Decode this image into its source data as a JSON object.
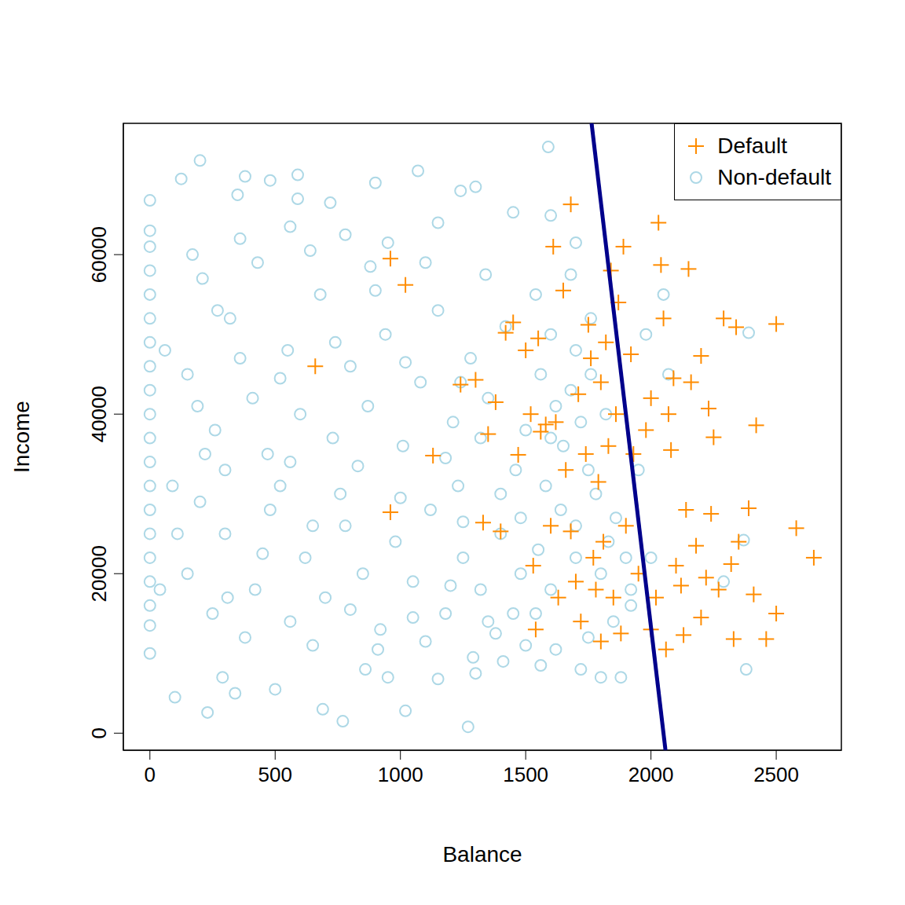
{
  "chart_data": {
    "type": "scatter",
    "x_label": "Balance",
    "y_label": "Income",
    "xlim": [
      -106,
      2760
    ],
    "ylim": [
      -2140,
      76460
    ],
    "xticks": [
      0,
      500,
      1000,
      1500,
      2000,
      2500
    ],
    "yticks": [
      0,
      20000,
      40000,
      60000
    ],
    "legend": "top-right",
    "series": [
      {
        "name": "Non-default",
        "color": "#add8e6",
        "marker": "circle",
        "values": [
          [
            0,
            10000
          ],
          [
            0,
            13500
          ],
          [
            0,
            16000
          ],
          [
            0,
            19000
          ],
          [
            0,
            22000
          ],
          [
            0,
            25000
          ],
          [
            0,
            28000
          ],
          [
            0,
            31000
          ],
          [
            0,
            34000
          ],
          [
            0,
            37000
          ],
          [
            0,
            40000
          ],
          [
            0,
            43000
          ],
          [
            0,
            46000
          ],
          [
            0,
            49000
          ],
          [
            0,
            52000
          ],
          [
            0,
            55000
          ],
          [
            0,
            58000
          ],
          [
            0,
            61000
          ],
          [
            0,
            63000
          ],
          [
            0,
            66800
          ],
          [
            100,
            4500
          ],
          [
            230,
            2600
          ],
          [
            200,
            71800
          ],
          [
            125,
            69500
          ],
          [
            380,
            69800
          ],
          [
            590,
            70000
          ],
          [
            480,
            69300
          ],
          [
            770,
            1500
          ],
          [
            1270,
            800
          ],
          [
            1020,
            2800
          ],
          [
            690,
            3000
          ],
          [
            1590,
            73500
          ],
          [
            1070,
            70500
          ],
          [
            900,
            69000
          ],
          [
            1240,
            68000
          ],
          [
            590,
            67000
          ],
          [
            350,
            67500
          ],
          [
            720,
            66500
          ],
          [
            1300,
            68500
          ],
          [
            1450,
            65300
          ],
          [
            1600,
            64900
          ],
          [
            1700,
            61500
          ],
          [
            2390,
            50200
          ],
          [
            2380,
            8000
          ],
          [
            2290,
            19000
          ],
          [
            2370,
            24200
          ],
          [
            2050,
            55000
          ],
          [
            1980,
            50000
          ],
          [
            2070,
            45000
          ],
          [
            1950,
            33000
          ],
          [
            2000,
            22000
          ],
          [
            1920,
            16000
          ],
          [
            1880,
            7000
          ],
          [
            1800,
            7000
          ],
          [
            1720,
            8000
          ],
          [
            1560,
            8500
          ],
          [
            1410,
            9000
          ],
          [
            1300,
            7500
          ],
          [
            1150,
            6800
          ],
          [
            950,
            7000
          ],
          [
            860,
            8000
          ],
          [
            500,
            5500
          ],
          [
            340,
            5000
          ],
          [
            290,
            7000
          ],
          [
            1290,
            9500
          ],
          [
            1380,
            12500
          ],
          [
            1500,
            11000
          ],
          [
            1620,
            10500
          ],
          [
            1750,
            12000
          ],
          [
            1850,
            14000
          ],
          [
            1700,
            48000
          ],
          [
            1760,
            45000
          ],
          [
            1820,
            40000
          ],
          [
            1650,
            36000
          ],
          [
            1780,
            30000
          ],
          [
            1860,
            27000
          ],
          [
            1700,
            22000
          ],
          [
            1800,
            20000
          ],
          [
            1900,
            22000
          ],
          [
            1600,
            18000
          ],
          [
            1450,
            15000
          ],
          [
            150,
            20000
          ],
          [
            250,
            15000
          ],
          [
            300,
            25000
          ],
          [
            420,
            18000
          ],
          [
            480,
            28000
          ],
          [
            560,
            14000
          ],
          [
            620,
            22000
          ],
          [
            700,
            17000
          ],
          [
            780,
            26000
          ],
          [
            850,
            20000
          ],
          [
            920,
            13000
          ],
          [
            980,
            24000
          ],
          [
            1050,
            19000
          ],
          [
            1120,
            28000
          ],
          [
            1180,
            15000
          ],
          [
            1250,
            22000
          ],
          [
            1320,
            18000
          ],
          [
            1400,
            25000
          ],
          [
            1480,
            20000
          ],
          [
            1550,
            23000
          ],
          [
            380,
            12000
          ],
          [
            650,
            11000
          ],
          [
            910,
            10500
          ],
          [
            1100,
            11500
          ],
          [
            200,
            29000
          ],
          [
            520,
            31000
          ],
          [
            760,
            30000
          ],
          [
            1000,
            29500
          ],
          [
            1230,
            31000
          ],
          [
            1400,
            30000
          ],
          [
            150,
            45000
          ],
          [
            260,
            38000
          ],
          [
            320,
            52000
          ],
          [
            410,
            42000
          ],
          [
            470,
            35000
          ],
          [
            550,
            48000
          ],
          [
            600,
            40000
          ],
          [
            680,
            55000
          ],
          [
            730,
            37000
          ],
          [
            800,
            46000
          ],
          [
            870,
            41000
          ],
          [
            940,
            50000
          ],
          [
            1010,
            36000
          ],
          [
            1080,
            44000
          ],
          [
            1150,
            53000
          ],
          [
            1210,
            39000
          ],
          [
            1280,
            47000
          ],
          [
            1350,
            42000
          ],
          [
            1420,
            51000
          ],
          [
            1500,
            38000
          ],
          [
            1560,
            45000
          ],
          [
            1620,
            41000
          ],
          [
            210,
            57000
          ],
          [
            430,
            59000
          ],
          [
            640,
            60500
          ],
          [
            880,
            58500
          ],
          [
            1100,
            59000
          ],
          [
            1340,
            57500
          ],
          [
            300,
            33000
          ],
          [
            560,
            34000
          ],
          [
            830,
            33500
          ],
          [
            1180,
            34500
          ],
          [
            1460,
            33000
          ],
          [
            1600,
            50000
          ],
          [
            1680,
            43000
          ],
          [
            1720,
            39000
          ],
          [
            1640,
            28000
          ],
          [
            1700,
            26000
          ],
          [
            1580,
            31000
          ],
          [
            1540,
            15000
          ],
          [
            360,
            62000
          ],
          [
            560,
            63500
          ],
          [
            780,
            62500
          ],
          [
            950,
            61500
          ],
          [
            1150,
            64000
          ],
          [
            170,
            60000
          ],
          [
            270,
            53000
          ],
          [
            900,
            55500
          ],
          [
            1020,
            46500
          ],
          [
            1250,
            26500
          ],
          [
            650,
            26000
          ],
          [
            450,
            22500
          ],
          [
            310,
            17000
          ],
          [
            800,
            15500
          ],
          [
            1050,
            14500
          ],
          [
            1200,
            18500
          ],
          [
            1350,
            14000
          ],
          [
            1480,
            27000
          ],
          [
            1600,
            37000
          ],
          [
            1750,
            33000
          ],
          [
            1830,
            24000
          ],
          [
            1920,
            18000
          ],
          [
            1760,
            52000
          ],
          [
            1540,
            55000
          ],
          [
            1680,
            57500
          ],
          [
            1240,
            44000
          ],
          [
            1320,
            37000
          ],
          [
            740,
            49000
          ],
          [
            520,
            44500
          ],
          [
            360,
            47000
          ],
          [
            190,
            41000
          ],
          [
            220,
            35000
          ],
          [
            110,
            25000
          ],
          [
            90,
            31000
          ],
          [
            60,
            48000
          ],
          [
            40,
            18000
          ]
        ]
      },
      {
        "name": "Default",
        "color": "#ff8c00",
        "marker": "plus",
        "values": [
          [
            660,
            46000
          ],
          [
            960,
            27700
          ],
          [
            960,
            59500
          ],
          [
            1020,
            56200
          ],
          [
            1130,
            34800
          ],
          [
            1240,
            43700
          ],
          [
            1300,
            44300
          ],
          [
            1330,
            26400
          ],
          [
            1350,
            37500
          ],
          [
            1380,
            41500
          ],
          [
            1400,
            25300
          ],
          [
            1420,
            50200
          ],
          [
            1450,
            51500
          ],
          [
            1470,
            34900
          ],
          [
            1500,
            48000
          ],
          [
            1520,
            40000
          ],
          [
            1530,
            21000
          ],
          [
            1540,
            13000
          ],
          [
            1550,
            49500
          ],
          [
            1560,
            37800
          ],
          [
            1580,
            38700
          ],
          [
            1600,
            26000
          ],
          [
            1610,
            61000
          ],
          [
            1620,
            39000
          ],
          [
            1630,
            17000
          ],
          [
            1650,
            55500
          ],
          [
            1660,
            33000
          ],
          [
            1680,
            66300
          ],
          [
            1680,
            25300
          ],
          [
            1700,
            19000
          ],
          [
            1710,
            42500
          ],
          [
            1720,
            14000
          ],
          [
            1740,
            35000
          ],
          [
            1750,
            51200
          ],
          [
            1760,
            47000
          ],
          [
            1770,
            22000
          ],
          [
            1780,
            18000
          ],
          [
            1790,
            31500
          ],
          [
            1800,
            44000
          ],
          [
            1800,
            11500
          ],
          [
            1810,
            24000
          ],
          [
            1820,
            49000
          ],
          [
            1830,
            36000
          ],
          [
            1840,
            58000
          ],
          [
            1850,
            17000
          ],
          [
            1860,
            40000
          ],
          [
            1870,
            54000
          ],
          [
            1880,
            12500
          ],
          [
            1890,
            61000
          ],
          [
            1900,
            26000
          ],
          [
            1920,
            47500
          ],
          [
            1930,
            35000
          ],
          [
            1950,
            20000
          ],
          [
            1980,
            38000
          ],
          [
            2000,
            42000
          ],
          [
            2000,
            13000
          ],
          [
            2020,
            17000
          ],
          [
            2030,
            64000
          ],
          [
            2040,
            58700
          ],
          [
            2050,
            52000
          ],
          [
            2060,
            10500
          ],
          [
            2070,
            40000
          ],
          [
            2080,
            35500
          ],
          [
            2090,
            44500
          ],
          [
            2100,
            21000
          ],
          [
            2120,
            18500
          ],
          [
            2130,
            12300
          ],
          [
            2140,
            28000
          ],
          [
            2150,
            58200
          ],
          [
            2160,
            44000
          ],
          [
            2180,
            23500
          ],
          [
            2200,
            47300
          ],
          [
            2200,
            14500
          ],
          [
            2220,
            19500
          ],
          [
            2230,
            40700
          ],
          [
            2240,
            27500
          ],
          [
            2250,
            37100
          ],
          [
            2270,
            18000
          ],
          [
            2290,
            52000
          ],
          [
            2320,
            21200
          ],
          [
            2330,
            11800
          ],
          [
            2340,
            50900
          ],
          [
            2350,
            24000
          ],
          [
            2390,
            28200
          ],
          [
            2410,
            17400
          ],
          [
            2420,
            38600
          ],
          [
            2460,
            11800
          ],
          [
            2500,
            51300
          ],
          [
            2500,
            15000
          ],
          [
            2580,
            25700
          ],
          [
            2650,
            22000
          ]
        ]
      },
      {
        "type": "line",
        "color": "#00008b",
        "values": [
          [
            1763,
            76460
          ],
          [
            2058,
            -2140
          ]
        ]
      }
    ]
  }
}
